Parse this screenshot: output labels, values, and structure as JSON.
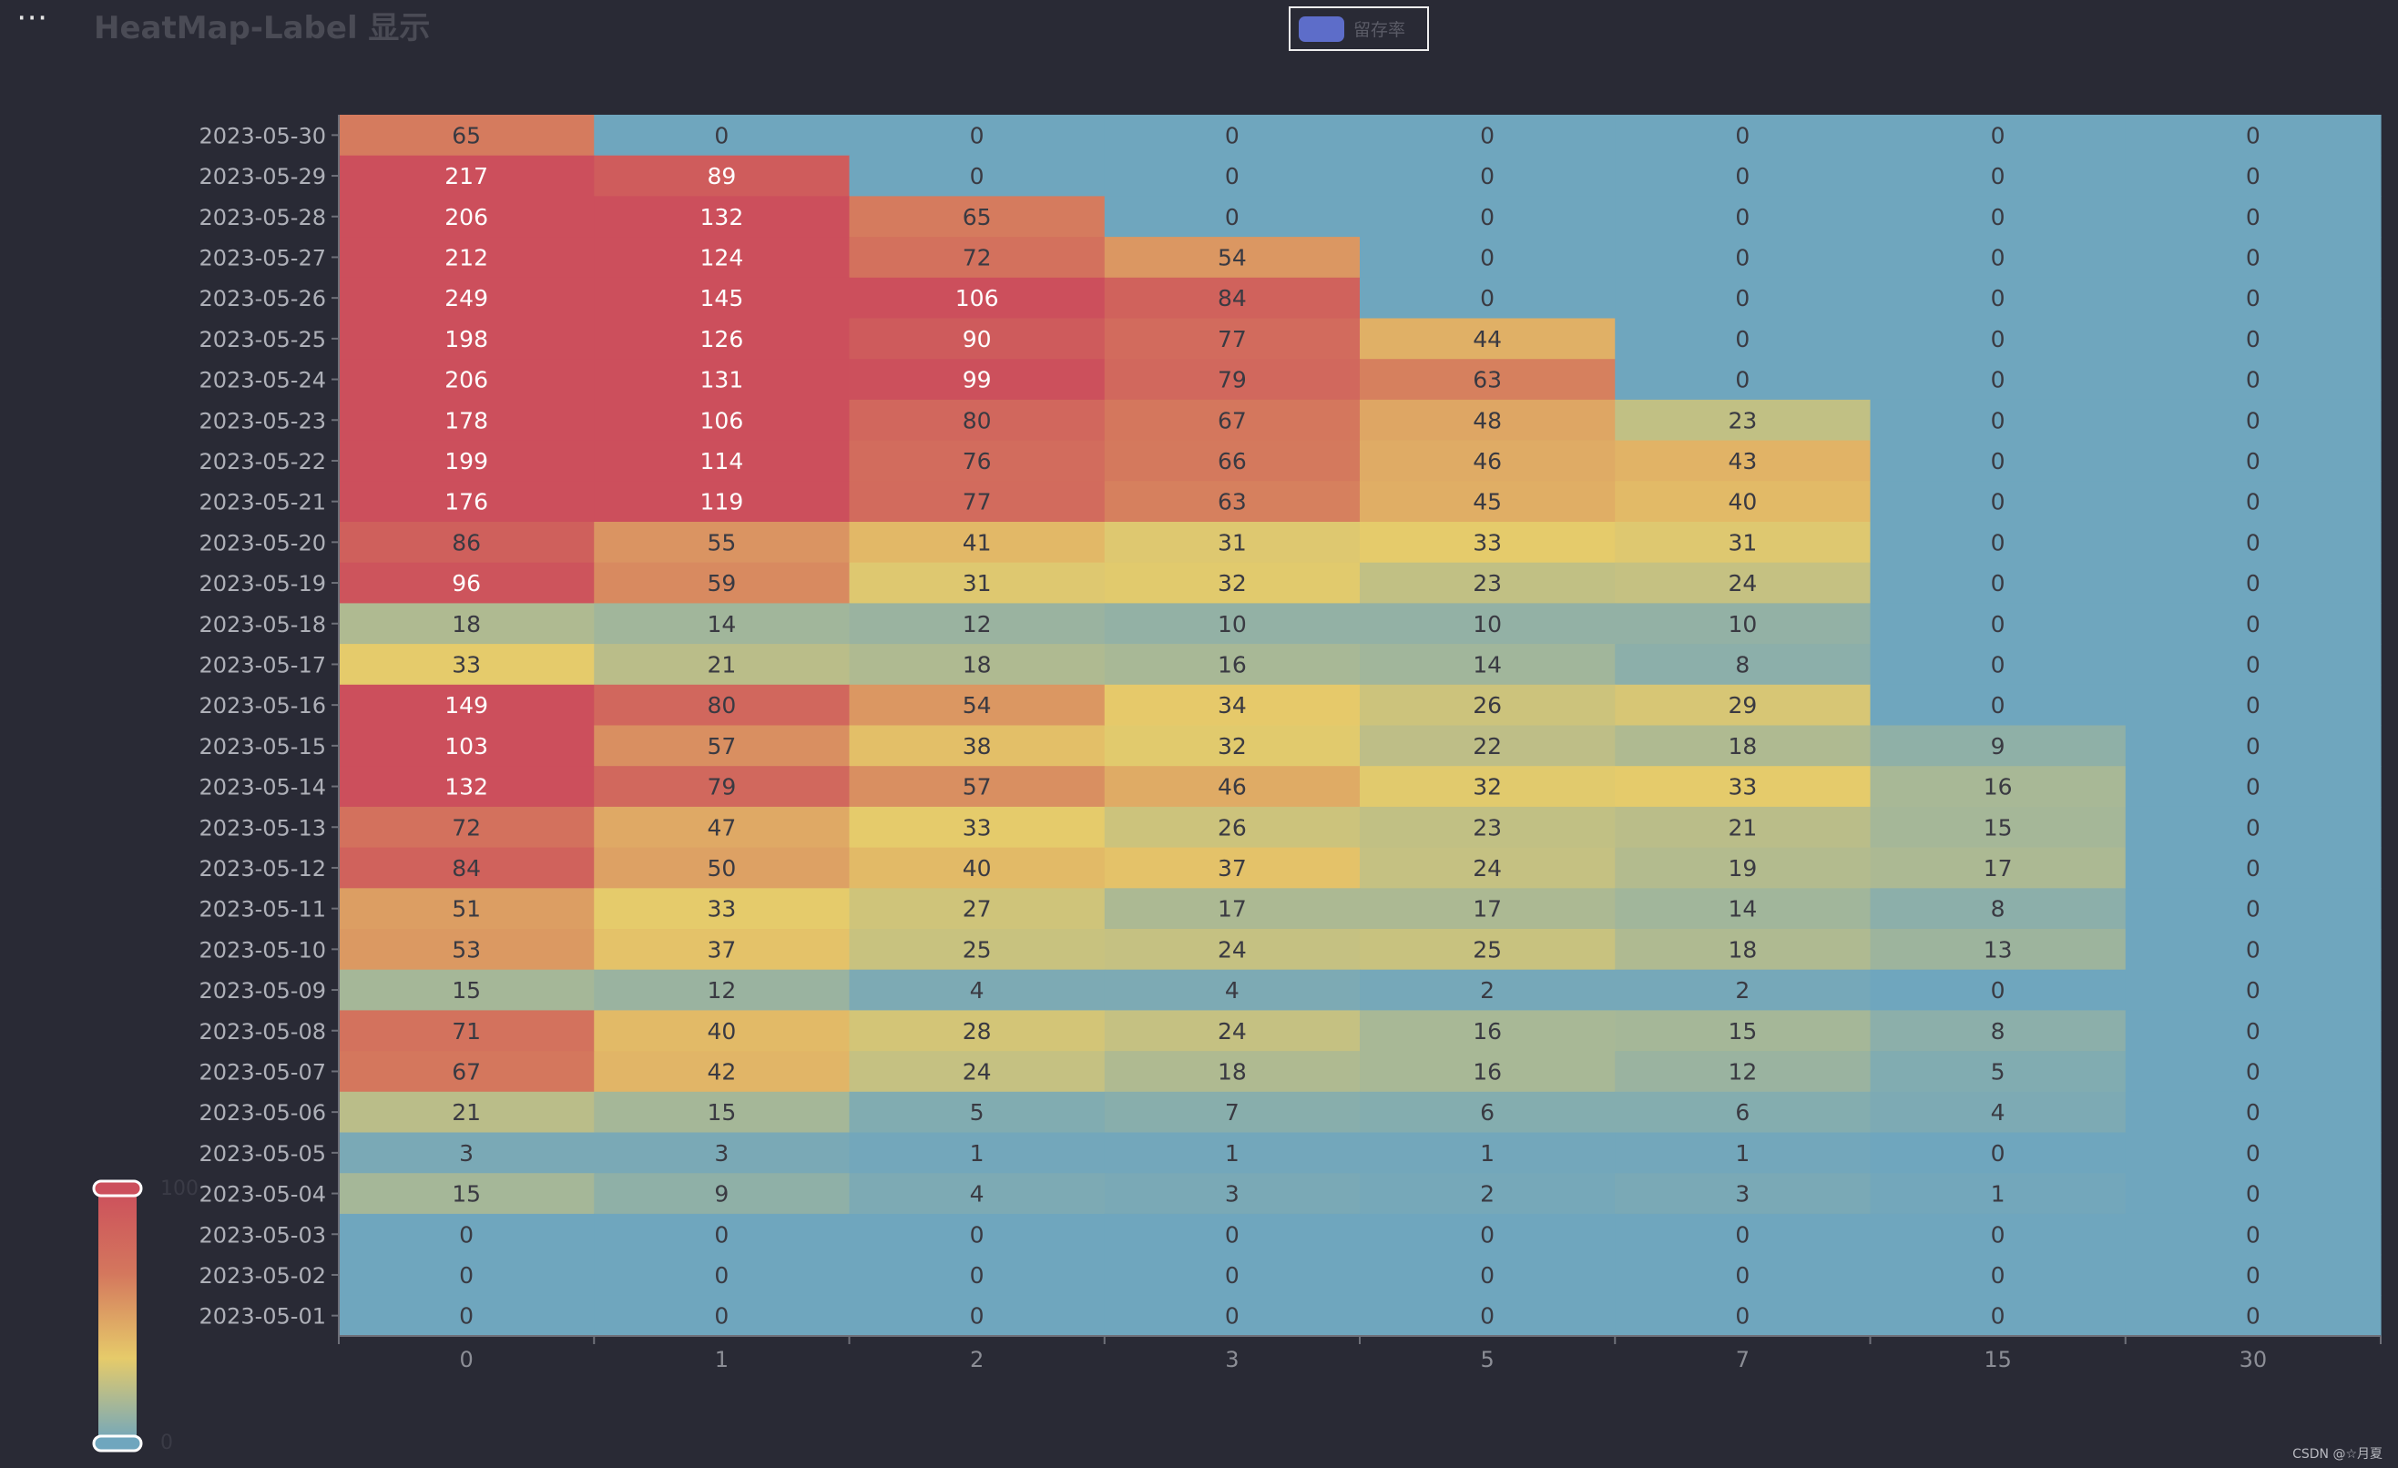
{
  "toolbar": {
    "menu_glyph": "⋯"
  },
  "footer": {
    "watermark": "CSDN @☆月夏"
  },
  "chart_data": {
    "type": "heatmap",
    "title": "HeatMap-Label 显示",
    "legend": {
      "entries": [
        "留存率"
      ],
      "color": "#5d6dc9",
      "placement": "top-center"
    },
    "visual_map": {
      "min": 0,
      "max": 100,
      "min_label": "0",
      "max_label": "100",
      "colors": [
        "#6fa6be",
        "#e6cb6a",
        "#d4775d",
        "#cc4f5c"
      ]
    },
    "x_categories": [
      "0",
      "1",
      "2",
      "3",
      "5",
      "7",
      "15",
      "30"
    ],
    "y_categories": [
      "2023-05-30",
      "2023-05-29",
      "2023-05-28",
      "2023-05-27",
      "2023-05-26",
      "2023-05-25",
      "2023-05-24",
      "2023-05-23",
      "2023-05-22",
      "2023-05-21",
      "2023-05-20",
      "2023-05-19",
      "2023-05-18",
      "2023-05-17",
      "2023-05-16",
      "2023-05-15",
      "2023-05-14",
      "2023-05-13",
      "2023-05-12",
      "2023-05-11",
      "2023-05-10",
      "2023-05-09",
      "2023-05-08",
      "2023-05-07",
      "2023-05-06",
      "2023-05-05",
      "2023-05-04",
      "2023-05-03",
      "2023-05-02",
      "2023-05-01"
    ],
    "values": [
      [
        65,
        0,
        0,
        0,
        0,
        0,
        0,
        0
      ],
      [
        217,
        89,
        0,
        0,
        0,
        0,
        0,
        0
      ],
      [
        206,
        132,
        65,
        0,
        0,
        0,
        0,
        0
      ],
      [
        212,
        124,
        72,
        54,
        0,
        0,
        0,
        0
      ],
      [
        249,
        145,
        106,
        84,
        0,
        0,
        0,
        0
      ],
      [
        198,
        126,
        90,
        77,
        44,
        0,
        0,
        0
      ],
      [
        206,
        131,
        99,
        79,
        63,
        0,
        0,
        0
      ],
      [
        178,
        106,
        80,
        67,
        48,
        23,
        0,
        0
      ],
      [
        199,
        114,
        76,
        66,
        46,
        43,
        0,
        0
      ],
      [
        176,
        119,
        77,
        63,
        45,
        40,
        0,
        0
      ],
      [
        86,
        55,
        41,
        31,
        33,
        31,
        0,
        0
      ],
      [
        96,
        59,
        31,
        32,
        23,
        24,
        0,
        0
      ],
      [
        18,
        14,
        12,
        10,
        10,
        10,
        0,
        0
      ],
      [
        33,
        21,
        18,
        16,
        14,
        8,
        0,
        0
      ],
      [
        149,
        80,
        54,
        34,
        26,
        29,
        0,
        0
      ],
      [
        103,
        57,
        38,
        32,
        22,
        18,
        9,
        0
      ],
      [
        132,
        79,
        57,
        46,
        32,
        33,
        16,
        0
      ],
      [
        72,
        47,
        33,
        26,
        23,
        21,
        15,
        0
      ],
      [
        84,
        50,
        40,
        37,
        24,
        19,
        17,
        0
      ],
      [
        51,
        33,
        27,
        17,
        17,
        14,
        8,
        0
      ],
      [
        53,
        37,
        25,
        24,
        25,
        18,
        13,
        0
      ],
      [
        15,
        12,
        4,
        4,
        2,
        2,
        0,
        0
      ],
      [
        71,
        40,
        28,
        24,
        16,
        15,
        8,
        0
      ],
      [
        67,
        42,
        24,
        18,
        16,
        12,
        5,
        0
      ],
      [
        21,
        15,
        5,
        7,
        6,
        6,
        4,
        0
      ],
      [
        3,
        3,
        1,
        1,
        1,
        1,
        0,
        0
      ],
      [
        15,
        9,
        4,
        3,
        2,
        3,
        1,
        0
      ],
      [
        0,
        0,
        0,
        0,
        0,
        0,
        0,
        0
      ],
      [
        0,
        0,
        0,
        0,
        0,
        0,
        0,
        0
      ],
      [
        0,
        0,
        0,
        0,
        0,
        0,
        0,
        0
      ]
    ]
  }
}
